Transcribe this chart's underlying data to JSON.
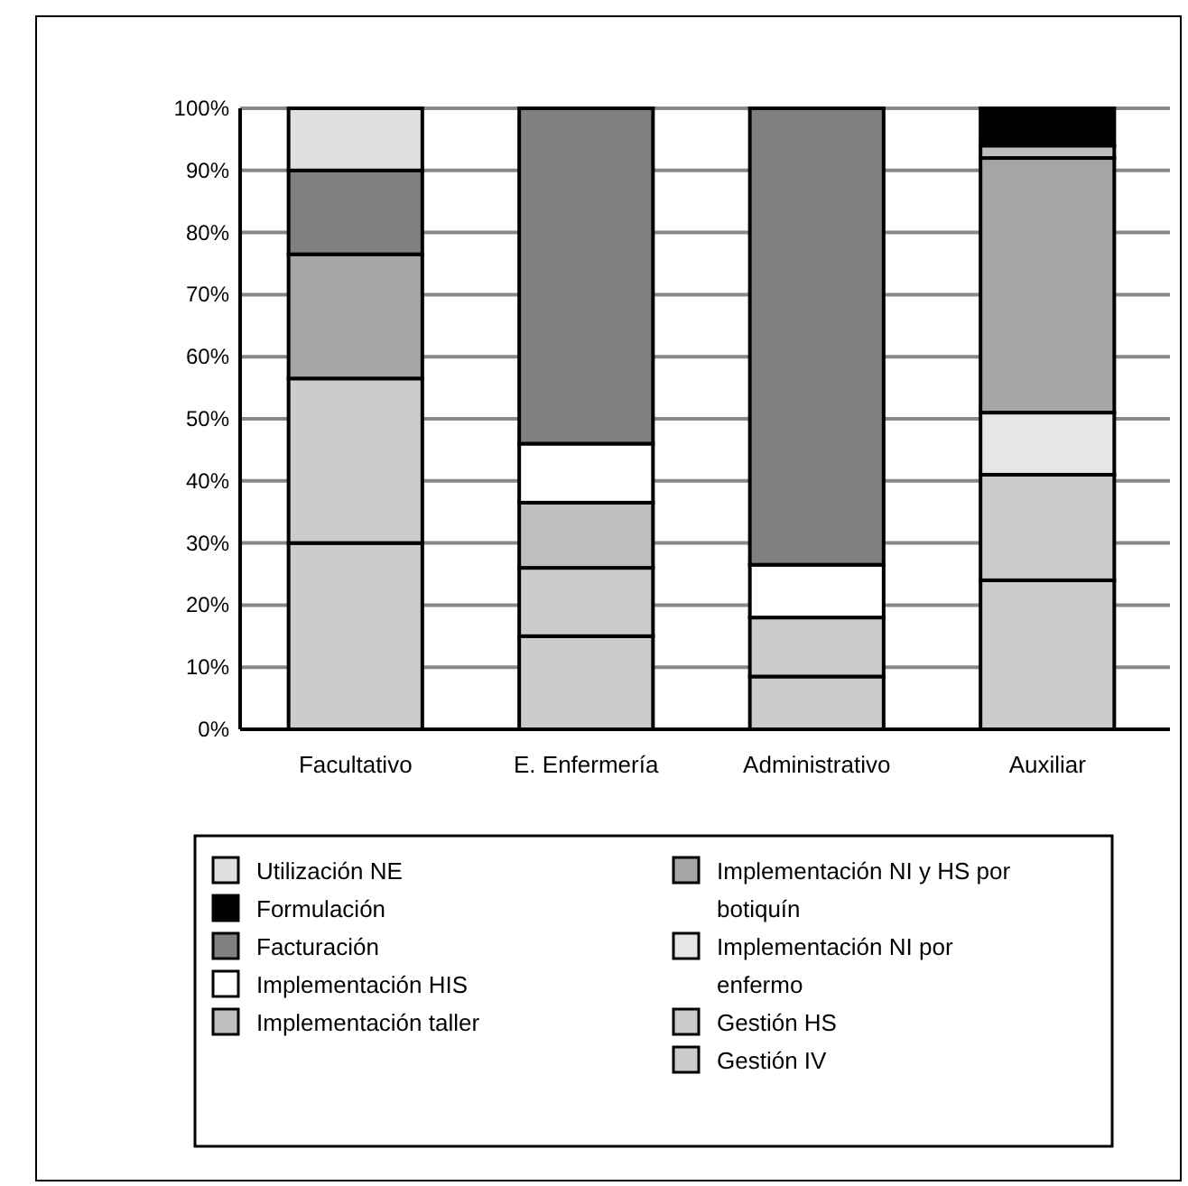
{
  "chart_data": {
    "type": "bar",
    "stacked": true,
    "categories": [
      "Facultativo",
      "E. Enfermería",
      "Administrativo",
      "Auxiliar"
    ],
    "series": [
      {
        "name": "Gestión IV",
        "color": "#cccccc",
        "values": [
          30,
          15,
          8.5,
          24
        ]
      },
      {
        "name": "Gestión HS",
        "color": "#cccccc",
        "values": [
          26.5,
          11,
          9.5,
          17
        ]
      },
      {
        "name": "Implementación NI por enfermo",
        "color": "#e6e6e6",
        "values": [
          null,
          null,
          null,
          10
        ]
      },
      {
        "name": "Implementación NI y HS por botiquín",
        "color": "#a6a6a6",
        "values": [
          20,
          null,
          null,
          41
        ]
      },
      {
        "name": "Implementación taller",
        "color": "#bfbfbf",
        "values": [
          null,
          10.5,
          null,
          2
        ]
      },
      {
        "name": "Implementación HIS",
        "color": "#ffffff",
        "values": [
          null,
          9.5,
          8.5,
          null
        ]
      },
      {
        "name": "Facturación",
        "color": "#808080",
        "values": [
          13.5,
          54,
          73.5,
          null
        ]
      },
      {
        "name": "Formulación",
        "color": "#000000",
        "values": [
          null,
          null,
          null,
          6
        ]
      },
      {
        "name": "Utilización NE",
        "color": "#e0e0e0",
        "values": [
          10,
          null,
          null,
          null
        ]
      }
    ],
    "ylim": [
      0,
      100
    ],
    "yticks": [
      {
        "value": 0,
        "label": "0%"
      },
      {
        "value": 10,
        "label": "10%"
      },
      {
        "value": 20,
        "label": "20%"
      },
      {
        "value": 30,
        "label": "30%"
      },
      {
        "value": 40,
        "label": "40%"
      },
      {
        "value": 50,
        "label": "50%"
      },
      {
        "value": 60,
        "label": "60%"
      },
      {
        "value": 70,
        "label": "70%"
      },
      {
        "value": 80,
        "label": "80%"
      },
      {
        "value": 90,
        "label": "90%"
      },
      {
        "value": 100,
        "label": "100%"
      }
    ],
    "grid": "y",
    "legend": "bottom"
  }
}
